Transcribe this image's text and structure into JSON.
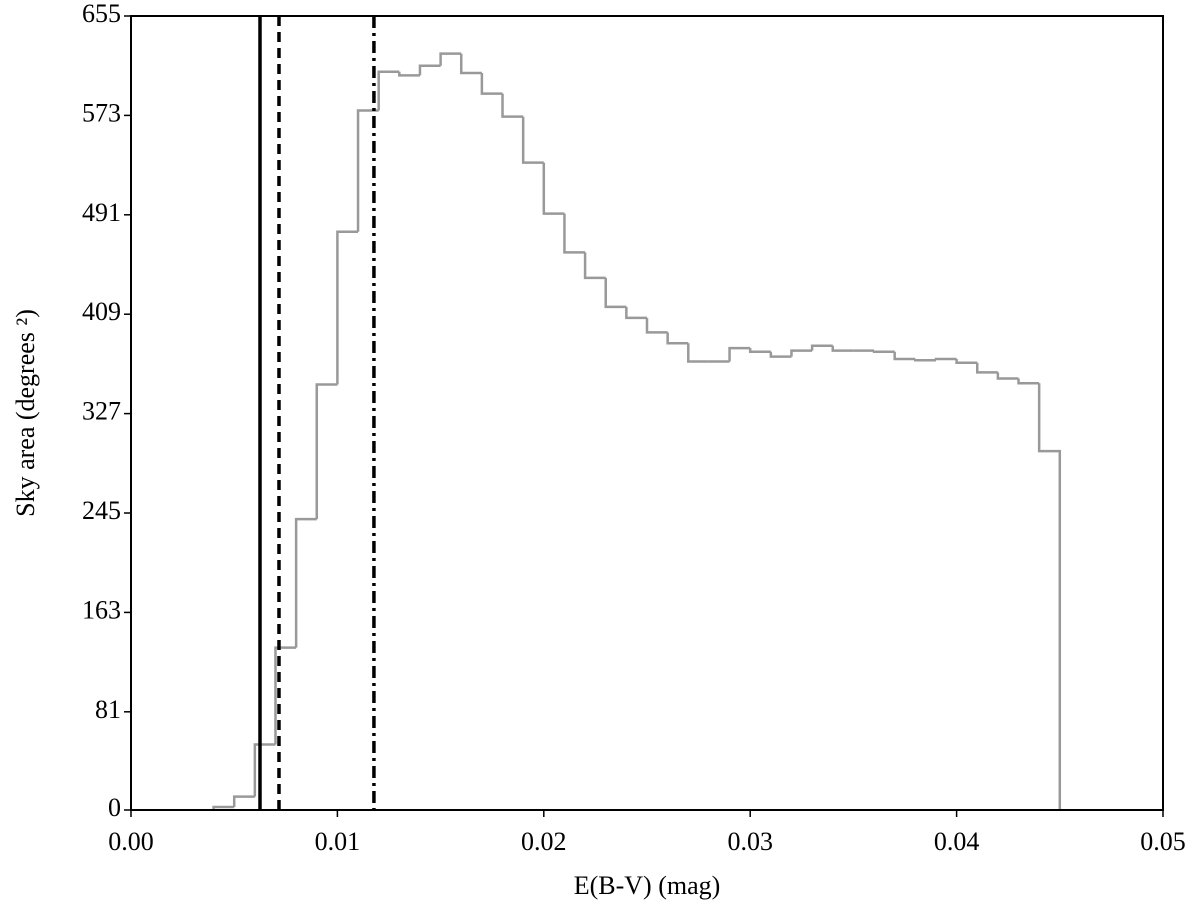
{
  "chart_data": {
    "type": "histogram",
    "xlabel": "E(B-V) (mag)",
    "ylabel": "Sky area (degrees ²)",
    "bins": [
      0.004,
      0.005,
      0.006,
      0.007,
      0.008,
      0.009,
      0.01,
      0.011,
      0.012,
      0.013,
      0.014,
      0.015,
      0.016,
      0.017,
      0.018,
      0.019,
      0.02,
      0.021,
      0.022,
      0.023,
      0.024,
      0.025,
      0.026,
      0.027,
      0.028,
      0.029,
      0.03,
      0.031,
      0.032,
      0.033,
      0.034,
      0.035,
      0.036,
      0.037,
      0.038,
      0.039,
      0.04,
      0.041,
      0.042,
      0.043,
      0.044,
      0.045
    ],
    "values": [
      2.5,
      11,
      54,
      134,
      240,
      351,
      477,
      577,
      609,
      606,
      614,
      624,
      608,
      591,
      572,
      534,
      492,
      460,
      439,
      415,
      406,
      394,
      385,
      370,
      370,
      381,
      378,
      374,
      379,
      383,
      379,
      379,
      378,
      372,
      371,
      372,
      369,
      361,
      356,
      352,
      296
    ],
    "color": "#999999",
    "vlines": [
      {
        "x": 0.00625,
        "style": "solid"
      },
      {
        "x": 0.00717,
        "style": "dashed"
      },
      {
        "x": 0.01177,
        "style": "dashdot"
      }
    ],
    "vline_color": "#000000",
    "xlim": [
      0,
      0.05
    ],
    "ylim": [
      0,
      655
    ],
    "xticks": [
      {
        "value": 0,
        "label": "0.00"
      },
      {
        "value": 0.01,
        "label": "0.01"
      },
      {
        "value": 0.02,
        "label": "0.02"
      },
      {
        "value": 0.03,
        "label": "0.03"
      },
      {
        "value": 0.04,
        "label": "0.04"
      },
      {
        "value": 0.05,
        "label": "0.05"
      }
    ],
    "yticks": [
      0,
      81,
      163,
      245,
      327,
      409,
      491,
      573,
      655
    ],
    "grid": false
  }
}
